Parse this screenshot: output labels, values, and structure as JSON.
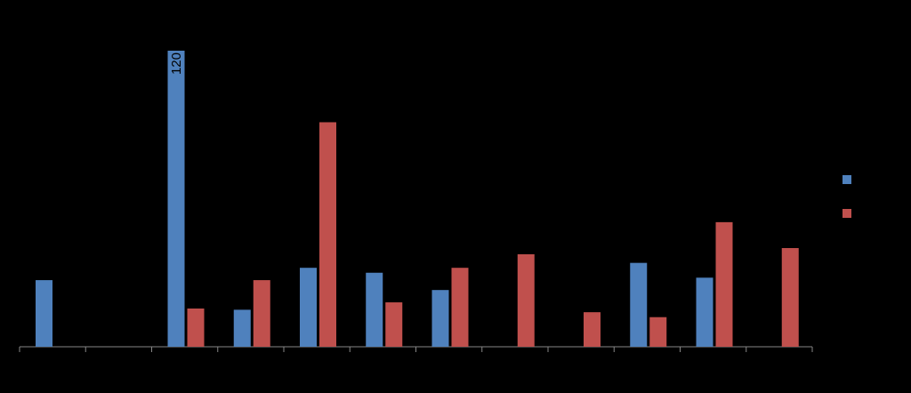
{
  "chart_data": {
    "type": "bar",
    "categories": [
      null,
      null,
      null,
      null,
      null,
      null,
      null,
      null,
      null,
      null,
      null,
      null
    ],
    "series": [
      {
        "color": "#4f81bd",
        "values": [
          27,
          null,
          120,
          15,
          32,
          30,
          23,
          null,
          null,
          34,
          28,
          null
        ],
        "value_labels": [
          null,
          null,
          "120",
          null,
          null,
          null,
          null,
          null,
          null,
          null,
          null,
          null
        ]
      },
      {
        "color": "#c0504d",
        "values": [
          null,
          null,
          15.5,
          27,
          91,
          18,
          32,
          37.5,
          14,
          12,
          50.5,
          40
        ]
      }
    ],
    "ylim": [
      0,
      120
    ]
  }
}
